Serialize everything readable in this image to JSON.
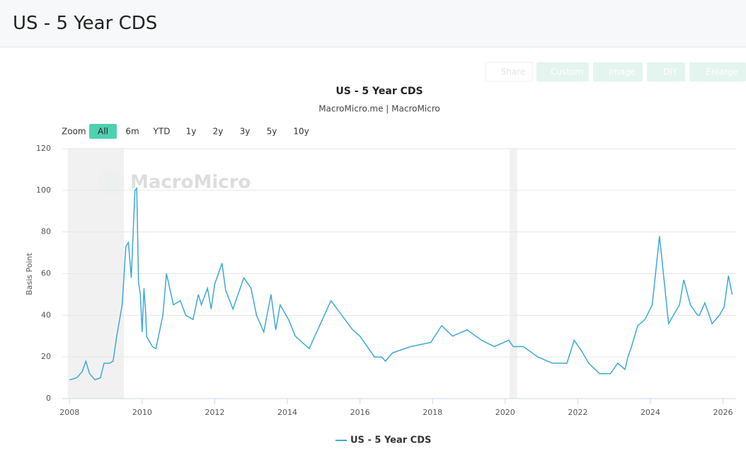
{
  "header": {
    "title": "US - 5 Year CDS"
  },
  "toolbar": {
    "buttons": [
      "Share",
      "Custom",
      "Image",
      "DIY",
      "Enlarge"
    ]
  },
  "zoom": {
    "label": "Zoom",
    "options": [
      "All",
      "6m",
      "YTD",
      "1y",
      "2y",
      "3y",
      "5y",
      "10y"
    ],
    "active": "All"
  },
  "watermark": "MacroMicro",
  "chart_data": {
    "type": "line",
    "title": "US - 5 Year CDS",
    "subtitle": "MacroMicro.me | MacroMicro",
    "y_label": "Basis Point",
    "xlim": [
      2007.8,
      2026.36
    ],
    "xticks": [
      2008,
      2010,
      2012,
      2014,
      2016,
      2018,
      2020,
      2022,
      2024,
      2026
    ],
    "ylim": [
      0,
      120
    ],
    "yticks": [
      0,
      20,
      40,
      60,
      80,
      100,
      120
    ],
    "grid": true,
    "legend": "bottom",
    "shaded_ranges": [
      [
        2007.95,
        2009.5
      ],
      [
        2020.12,
        2020.33
      ]
    ],
    "x": [
      2008.0,
      2008.2,
      2008.35,
      2008.45,
      2008.55,
      2008.7,
      2008.85,
      2008.95,
      2009.1,
      2009.2,
      2009.3,
      2009.45,
      2009.55,
      2009.62,
      2009.7,
      2009.8,
      2009.85,
      2009.9,
      2009.95,
      2010.0,
      2010.05,
      2010.1,
      2010.12,
      2010.28,
      2010.38,
      2010.57,
      2010.67,
      2010.86,
      2011.05,
      2011.2,
      2011.4,
      2011.55,
      2011.63,
      2011.8,
      2011.9,
      2012.0,
      2012.2,
      2012.3,
      2012.5,
      2012.8,
      2013.0,
      2013.15,
      2013.35,
      2013.55,
      2013.68,
      2013.8,
      2014.03,
      2014.22,
      2014.6,
      2015.2,
      2015.8,
      2016.0,
      2016.4,
      2016.6,
      2016.7,
      2016.9,
      2017.4,
      2017.95,
      2018.25,
      2018.55,
      2018.95,
      2019.35,
      2019.7,
      2020.1,
      2020.22,
      2020.5,
      2020.9,
      2021.3,
      2021.7,
      2021.9,
      2022.1,
      2022.3,
      2022.6,
      2022.9,
      2023.1,
      2023.3,
      2023.38,
      2023.48,
      2023.65,
      2023.85,
      2024.05,
      2024.25,
      2024.5,
      2024.8,
      2024.92,
      2025.1,
      2025.3,
      2025.35,
      2025.5,
      2025.7,
      2025.9,
      2026.03,
      2026.15,
      2026.25
    ],
    "series": [
      {
        "name": "US - 5 Year CDS",
        "color": "#3ea8d5",
        "values": [
          9,
          10,
          13,
          18,
          12,
          9,
          10,
          17,
          17,
          18,
          30,
          45,
          73,
          75,
          58,
          100,
          101,
          56,
          50,
          32,
          53,
          40,
          30,
          25,
          24,
          40,
          60,
          45,
          47,
          40,
          38,
          50,
          45,
          53,
          43,
          55,
          65,
          52,
          43,
          58,
          53,
          40,
          32,
          50,
          33,
          45,
          38,
          30,
          24,
          47,
          33,
          30,
          20,
          20,
          18,
          22,
          25,
          27,
          35,
          30,
          33,
          28,
          25,
          28,
          25,
          25,
          20,
          17,
          17,
          28,
          23,
          17,
          12,
          12,
          17,
          14,
          20,
          25,
          35,
          38,
          45,
          78,
          36,
          45,
          57,
          45,
          40,
          40,
          46,
          36,
          40,
          44,
          59,
          50
        ]
      }
    ]
  }
}
